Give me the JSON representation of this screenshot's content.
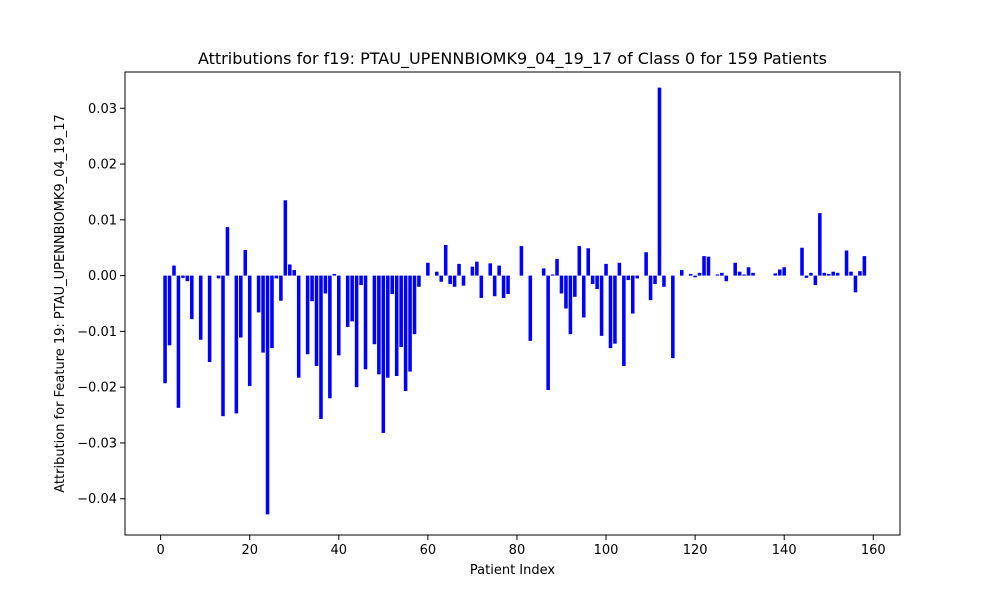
{
  "chart_data": {
    "type": "bar",
    "title": "Attributions for f19: PTAU_UPENNBIOMK9_04_19_17 of Class 0 for 159 Patients",
    "xlabel": "Patient Index",
    "ylabel": "Attribution for Feature 19: PTAU_UPENNBIOMK9_04_19_17",
    "xlim": [
      -8,
      166
    ],
    "ylim": [
      -0.0465,
      0.0365
    ],
    "xticks": [
      0,
      20,
      40,
      60,
      80,
      100,
      120,
      140,
      160
    ],
    "yticks": [
      -0.04,
      -0.03,
      -0.02,
      -0.01,
      0.0,
      0.01,
      0.02,
      0.03
    ],
    "ytick_labels": [
      "−0.04",
      "−0.03",
      "−0.02",
      "−0.01",
      "0.00",
      "0.01",
      "0.02",
      "0.03"
    ],
    "bar_color": "#0000ff",
    "x": [
      0,
      1,
      2,
      3,
      4,
      5,
      6,
      7,
      8,
      9,
      10,
      11,
      12,
      13,
      14,
      15,
      16,
      17,
      18,
      19,
      20,
      21,
      22,
      23,
      24,
      25,
      26,
      27,
      28,
      29,
      30,
      31,
      32,
      33,
      34,
      35,
      36,
      37,
      38,
      39,
      40,
      41,
      42,
      43,
      44,
      45,
      46,
      47,
      48,
      49,
      50,
      51,
      52,
      53,
      54,
      55,
      56,
      57,
      58,
      59,
      60,
      61,
      62,
      63,
      64,
      65,
      66,
      67,
      68,
      69,
      70,
      71,
      72,
      73,
      74,
      75,
      76,
      77,
      78,
      79,
      80,
      81,
      82,
      83,
      84,
      85,
      86,
      87,
      88,
      89,
      90,
      91,
      92,
      93,
      94,
      95,
      96,
      97,
      98,
      99,
      100,
      101,
      102,
      103,
      104,
      105,
      106,
      107,
      108,
      109,
      110,
      111,
      112,
      113,
      114,
      115,
      116,
      117,
      118,
      119,
      120,
      121,
      122,
      123,
      124,
      125,
      126,
      127,
      128,
      129,
      130,
      131,
      132,
      133,
      134,
      135,
      136,
      137,
      138,
      139,
      140,
      141,
      142,
      143,
      144,
      145,
      146,
      147,
      148,
      149,
      150,
      151,
      152,
      153,
      154,
      155,
      156,
      157,
      158
    ],
    "values": [
      0,
      -0.0193,
      -0.0125,
      0.0018,
      -0.0237,
      -0.0004,
      -0.001,
      -0.0078,
      0,
      -0.0115,
      0,
      -0.0155,
      0,
      -0.0005,
      -0.0252,
      0.0087,
      0,
      -0.0247,
      -0.0111,
      0.0046,
      -0.0198,
      0,
      -0.0066,
      -0.0138,
      -0.0428,
      -0.013,
      -0.0005,
      -0.0045,
      0.0135,
      0.002,
      0.001,
      -0.0183,
      0,
      -0.0141,
      -0.0046,
      -0.0162,
      -0.0257,
      -0.0032,
      -0.022,
      0.0003,
      -0.0143,
      0,
      -0.0092,
      -0.0082,
      -0.02,
      -0.0017,
      -0.0168,
      0,
      -0.0123,
      -0.0177,
      -0.0282,
      -0.0183,
      -0.0033,
      -0.018,
      -0.0128,
      -0.0207,
      -0.0172,
      -0.0105,
      -0.002,
      0,
      0.0023,
      0,
      0.0007,
      -0.0011,
      0.0055,
      -0.0015,
      -0.002,
      0.0021,
      -0.0018,
      0,
      0.0016,
      0.0025,
      -0.004,
      0,
      0.0022,
      -0.0037,
      0.0018,
      -0.004,
      -0.0033,
      0,
      0,
      0.0053,
      0,
      -0.0117,
      0,
      0,
      0.0013,
      -0.0205,
      0.0002,
      0.003,
      -0.0032,
      -0.0059,
      -0.0105,
      -0.0038,
      0.0053,
      -0.0075,
      0.0049,
      -0.0015,
      -0.0024,
      -0.0108,
      0.0021,
      -0.013,
      -0.0122,
      0.0023,
      -0.0162,
      -0.0008,
      -0.0068,
      -0.0005,
      0,
      0.0042,
      -0.0044,
      -0.0015,
      0.0337,
      -0.002,
      0,
      -0.0148,
      0,
      0.001,
      0,
      0.0003,
      -0.0003,
      0.0005,
      0.0035,
      0.0034,
      0,
      0.0002,
      0.0005,
      -0.001,
      0,
      0.0023,
      0.0007,
      0.0002,
      0.0015,
      0.0005,
      0,
      0,
      0,
      0,
      0.0004,
      0.0011,
      0.0015,
      0,
      0,
      0,
      0.005,
      -0.0004,
      0.0005,
      -0.0017,
      0.0112,
      0.0005,
      0.0003,
      0.0007,
      0.0005,
      0,
      0.0045,
      0.0007,
      -0.003,
      0.0008,
      0.0035
    ]
  }
}
